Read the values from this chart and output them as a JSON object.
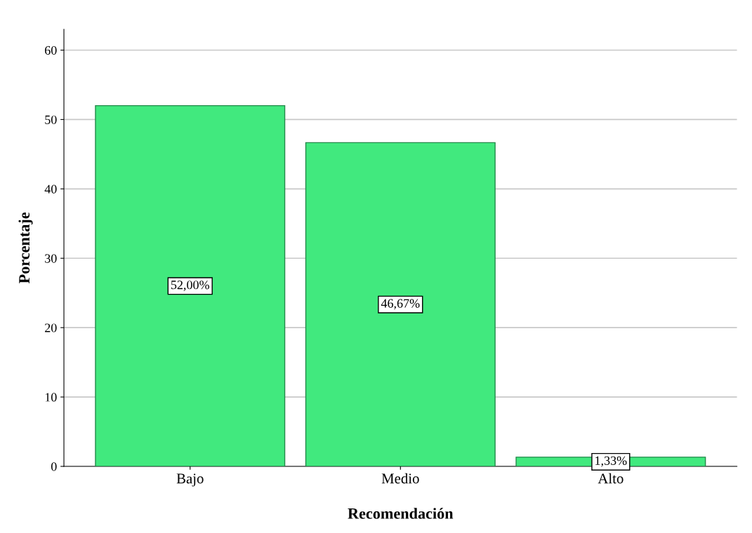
{
  "chart_data": {
    "type": "bar",
    "xlabel": "Recomendación",
    "ylabel": "Porcentaje",
    "categories": [
      "Bajo",
      "Medio",
      "Alto"
    ],
    "values": [
      52.0,
      46.67,
      1.33
    ],
    "value_labels": [
      "52,00%",
      "46,67%",
      "1,33%"
    ],
    "color": "#41e97e",
    "ylim": [
      0,
      63
    ],
    "yticks": [
      0,
      10,
      20,
      30,
      40,
      50,
      60
    ],
    "grid": "y"
  }
}
